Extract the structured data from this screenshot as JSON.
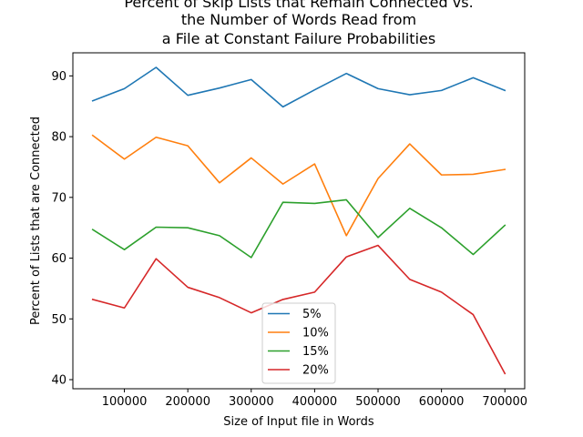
{
  "chart_data": {
    "type": "line",
    "title_lines": [
      "Percent of Skip Lists that Remain Connected vs.",
      "the Number of Words Read from",
      "a File at Constant Failure Probabilities"
    ],
    "xlabel": "Size of Input file in Words",
    "ylabel": "Percent of Lists that are Connected",
    "x": [
      50000,
      100000,
      150000,
      200000,
      250000,
      300000,
      350000,
      400000,
      450000,
      500000,
      550000,
      600000,
      650000,
      700000
    ],
    "xlim": [
      18750,
      731250
    ],
    "ylim": [
      38.5,
      93.8
    ],
    "x_ticks": [
      100000,
      200000,
      300000,
      400000,
      500000,
      600000,
      700000
    ],
    "x_tick_labels": [
      "100000",
      "200000",
      "300000",
      "400000",
      "500000",
      "600000",
      "700000"
    ],
    "y_ticks": [
      40,
      50,
      60,
      70,
      80,
      90
    ],
    "y_tick_labels": [
      "40",
      "50",
      "60",
      "70",
      "80",
      "90"
    ],
    "grid": false,
    "legend_position": "lower-center",
    "series": [
      {
        "name": "5%",
        "color": "#1f77b4",
        "values": [
          85.9,
          87.9,
          91.4,
          86.8,
          88.0,
          89.4,
          84.9,
          87.7,
          90.4,
          87.9,
          86.9,
          87.6,
          89.7,
          87.6
        ]
      },
      {
        "name": "10%",
        "color": "#ff7f0e",
        "values": [
          80.2,
          76.3,
          79.9,
          78.5,
          72.4,
          76.5,
          72.2,
          75.5,
          63.7,
          73.1,
          78.8,
          73.7,
          73.8,
          74.6
        ]
      },
      {
        "name": "15%",
        "color": "#2ca02c",
        "values": [
          64.7,
          61.4,
          65.1,
          65.0,
          63.7,
          60.1,
          69.2,
          69.0,
          69.6,
          63.4,
          68.2,
          65.0,
          60.6,
          65.4
        ]
      },
      {
        "name": "20%",
        "color": "#d62728",
        "values": [
          53.2,
          51.8,
          59.9,
          55.2,
          53.5,
          51.0,
          53.2,
          54.4,
          60.2,
          62.1,
          56.5,
          54.4,
          50.7,
          41.0
        ]
      }
    ]
  }
}
